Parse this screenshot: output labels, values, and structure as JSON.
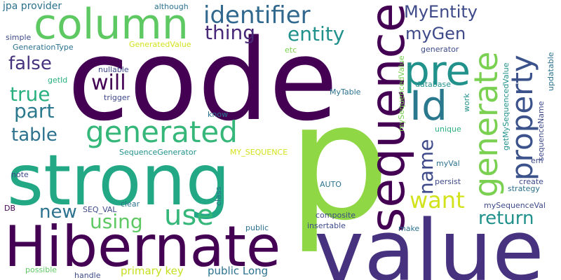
{
  "words": [
    {
      "text": "code",
      "color": "#440154",
      "vertical": false
    },
    {
      "text": "p",
      "color": "#8fd744",
      "vertical": false
    },
    {
      "text": "strong",
      "color": "#22a884",
      "vertical": false
    },
    {
      "text": "value",
      "color": "#46327e",
      "vertical": false
    },
    {
      "text": "Hibernate",
      "color": "#440154",
      "vertical": false
    },
    {
      "text": "column",
      "color": "#5ec962",
      "vertical": false
    },
    {
      "text": "sequence",
      "color": "#440154",
      "vertical": true
    },
    {
      "text": "generated",
      "color": "#35b779",
      "vertical": false
    },
    {
      "text": "pre",
      "color": "#21918c",
      "vertical": false
    },
    {
      "text": "Id",
      "color": "#2a788e",
      "vertical": false
    },
    {
      "text": "generate",
      "color": "#7ad151",
      "vertical": true
    },
    {
      "text": "property",
      "color": "#3b528b",
      "vertical": true
    },
    {
      "text": "identifier",
      "color": "#31688e",
      "vertical": false
    },
    {
      "text": "use",
      "color": "#35b779",
      "vertical": false
    },
    {
      "text": "part",
      "color": "#2a788e",
      "vertical": false
    },
    {
      "text": "thing",
      "color": "#482878",
      "vertical": false
    },
    {
      "text": "entity",
      "color": "#21918c",
      "vertical": false
    },
    {
      "text": "will",
      "color": "#440154",
      "vertical": false
    },
    {
      "text": "want",
      "color": "#d2e21b",
      "vertical": false
    },
    {
      "text": "name",
      "color": "#3e4a89",
      "vertical": true
    },
    {
      "text": "true",
      "color": "#2ab07f",
      "vertical": false
    },
    {
      "text": "table",
      "color": "#2c728e",
      "vertical": false
    },
    {
      "text": "false",
      "color": "#46327e",
      "vertical": false
    },
    {
      "text": "using",
      "color": "#5ec962",
      "vertical": false
    },
    {
      "text": "new",
      "color": "#2c728e",
      "vertical": false
    },
    {
      "text": "return",
      "color": "#21918c",
      "vertical": false
    },
    {
      "text": "MyEntity",
      "color": "#3e4a89",
      "vertical": false
    },
    {
      "text": "myGen",
      "color": "#3e4a89",
      "vertical": false
    },
    {
      "text": "primary key",
      "color": "#c5e021",
      "vertical": false
    },
    {
      "text": "public Long",
      "color": "#2c728e",
      "vertical": false
    },
    {
      "text": "jpa provider",
      "color": "#2c728e",
      "vertical": false
    },
    {
      "text": "although",
      "color": "#2c728e",
      "vertical": false
    },
    {
      "text": "simple",
      "color": "#3e4a89",
      "vertical": false
    },
    {
      "text": "GenerationType",
      "color": "#2c728e",
      "vertical": false
    },
    {
      "text": "GeneratedValue",
      "color": "#d2e21b",
      "vertical": false
    },
    {
      "text": "etc",
      "color": "#7ad151",
      "vertical": false
    },
    {
      "text": "getId",
      "color": "#2ab07f",
      "vertical": false
    },
    {
      "text": "nullable",
      "color": "#3e4a89",
      "vertical": false
    },
    {
      "text": "trigger",
      "color": "#3e4a89",
      "vertical": false
    },
    {
      "text": "MyTable",
      "color": "#2c728e",
      "vertical": false
    },
    {
      "text": "database",
      "color": "#21918c",
      "vertical": false
    },
    {
      "text": "generator",
      "color": "#3e4a89",
      "vertical": false
    },
    {
      "text": "work",
      "color": "#21918c",
      "vertical": true
    },
    {
      "text": "mySequencedValue",
      "color": "#7ad151",
      "vertical": true
    },
    {
      "text": "getMySequencedValue",
      "color": "#21918c",
      "vertical": true
    },
    {
      "text": "sequenceName",
      "color": "#3e4a89",
      "vertical": true
    },
    {
      "text": "updatable",
      "color": "#2c728e",
      "vertical": true
    },
    {
      "text": "unique",
      "color": "#2ab07f",
      "vertical": false
    },
    {
      "text": "myVal",
      "color": "#2c728e",
      "vertical": false
    },
    {
      "text": "em",
      "color": "#3e4a89",
      "vertical": false
    },
    {
      "text": "know",
      "color": "#2c728e",
      "vertical": false
    },
    {
      "text": "note",
      "color": "#3e4a89",
      "vertical": false
    },
    {
      "text": "SequenceGenerator",
      "color": "#21918c",
      "vertical": false
    },
    {
      "text": "MY_SEQUENCE",
      "color": "#d2e21b",
      "vertical": false
    },
    {
      "text": "persist",
      "color": "#3e4a89",
      "vertical": false
    },
    {
      "text": "create",
      "color": "#3e4a89",
      "vertical": false
    },
    {
      "text": "strategy",
      "color": "#2c728e",
      "vertical": false
    },
    {
      "text": "AUTO",
      "color": "#2c728e",
      "vertical": false
    },
    {
      "text": "class",
      "color": "#2c728e",
      "vertical": true
    },
    {
      "text": "DB",
      "color": "#440154",
      "vertical": false
    },
    {
      "text": "SEQ_VAL",
      "color": "#3e4a89",
      "vertical": false
    },
    {
      "text": "clear",
      "color": "#2c728e",
      "vertical": false
    },
    {
      "text": "composite",
      "color": "#3e4a89",
      "vertical": false
    },
    {
      "text": "insertable",
      "color": "#3e4a89",
      "vertical": false
    },
    {
      "text": "mySequenceVal",
      "color": "#3e4a89",
      "vertical": false
    },
    {
      "text": "public",
      "color": "#2c728e",
      "vertical": false
    },
    {
      "text": "make",
      "color": "#2c728e",
      "vertical": false
    },
    {
      "text": "possible",
      "color": "#5ec962",
      "vertical": false
    },
    {
      "text": "handle",
      "color": "#3e4a89",
      "vertical": false
    }
  ]
}
